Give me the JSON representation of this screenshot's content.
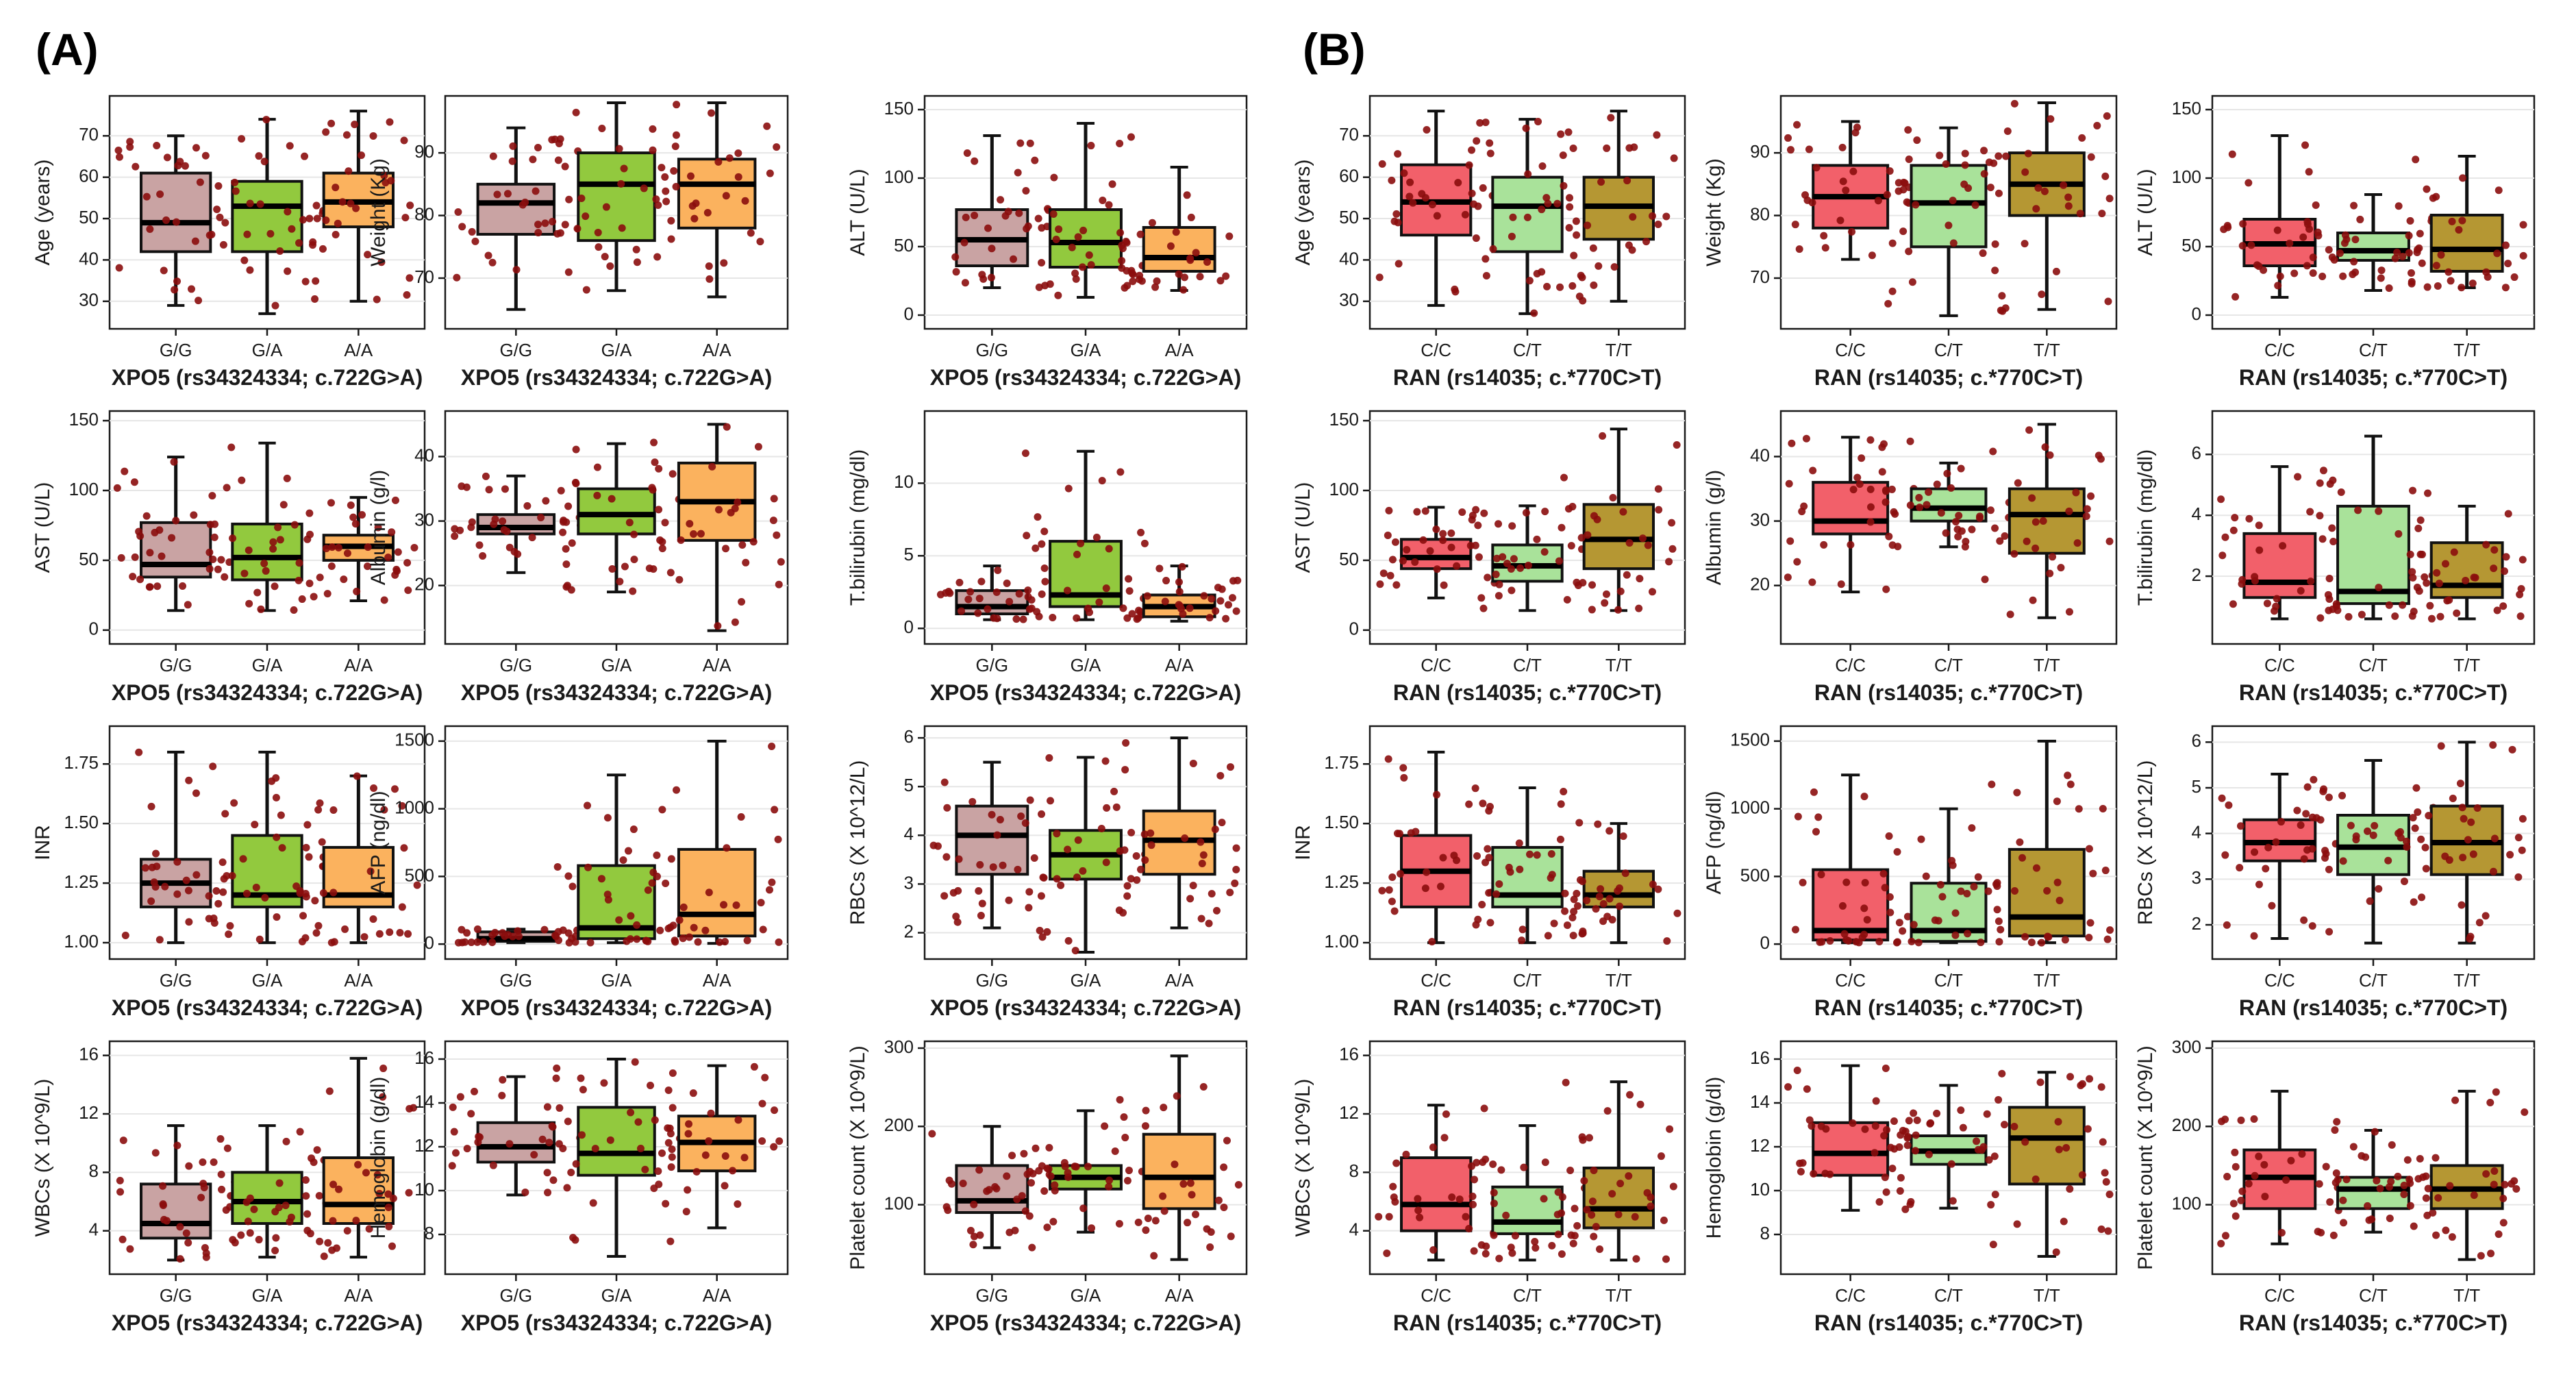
{
  "panel_labels": [
    "(A)",
    "(B)"
  ],
  "colors": {
    "border": "#1a1a1a",
    "grid": "#e6e6e6",
    "point": "#8b0d0d",
    "median": "#000000",
    "xpo5_box": [
      "#c9a3a3",
      "#92c93e",
      "#fbb25e"
    ],
    "ran_box": [
      "#f2606a",
      "#a9e29a",
      "#b59733"
    ]
  },
  "xaxis": {
    "xpo5": {
      "title": "XPO5 (rs34324334; c.722G>A)",
      "categories": [
        "G/G",
        "G/A",
        "A/A"
      ]
    },
    "ran": {
      "title": "RAN (rs14035; c.*770C>T)",
      "categories": [
        "C/C",
        "C/T",
        "T/T"
      ]
    }
  },
  "chart_data": [
    {
      "type": "box",
      "panel": "A",
      "gene": "xpo5",
      "ylabel": "Age (years)",
      "ylim": [
        25,
        78
      ],
      "yticks": [
        30,
        40,
        50,
        60,
        70
      ],
      "ticklabels": [
        "30",
        "40",
        "50",
        "60",
        "70"
      ],
      "boxes": [
        {
          "min": 29,
          "q1": 42,
          "median": 49,
          "q3": 61,
          "max": 70
        },
        {
          "min": 27,
          "q1": 42,
          "median": 53,
          "q3": 59,
          "max": 74
        },
        {
          "min": 30,
          "q1": 48,
          "median": 54,
          "q3": 61,
          "max": 76
        }
      ]
    },
    {
      "type": "box",
      "panel": "A",
      "gene": "xpo5",
      "ylabel": "Weight (Kg)",
      "ylim": [
        63,
        98
      ],
      "yticks": [
        70,
        80,
        90
      ],
      "ticklabels": [
        "70",
        "80",
        "90"
      ],
      "boxes": [
        {
          "min": 65,
          "q1": 77,
          "median": 82,
          "q3": 85,
          "max": 94
        },
        {
          "min": 68,
          "q1": 76,
          "median": 85,
          "q3": 90,
          "max": 98
        },
        {
          "min": 67,
          "q1": 78,
          "median": 85,
          "q3": 89,
          "max": 98
        }
      ]
    },
    {
      "type": "box",
      "panel": "A",
      "gene": "xpo5",
      "ylabel": "ALT (U/L)",
      "ylim": [
        -5,
        155
      ],
      "yticks": [
        0,
        50,
        100,
        150
      ],
      "ticklabels": [
        "0",
        "50",
        "100",
        "150"
      ],
      "boxes": [
        {
          "min": 20,
          "q1": 36,
          "median": 55,
          "q3": 77,
          "max": 131
        },
        {
          "min": 13,
          "q1": 35,
          "median": 53,
          "q3": 77,
          "max": 140
        },
        {
          "min": 18,
          "q1": 32,
          "median": 42,
          "q3": 64,
          "max": 108
        }
      ]
    },
    {
      "type": "box",
      "panel": "B",
      "gene": "ran",
      "ylabel": "Age (years)",
      "ylim": [
        25,
        78
      ],
      "yticks": [
        30,
        40,
        50,
        60,
        70
      ],
      "ticklabels": [
        "30",
        "40",
        "50",
        "60",
        "70"
      ],
      "boxes": [
        {
          "min": 29,
          "q1": 46,
          "median": 54,
          "q3": 63,
          "max": 76
        },
        {
          "min": 27,
          "q1": 42,
          "median": 53,
          "q3": 60,
          "max": 74
        },
        {
          "min": 30,
          "q1": 45,
          "median": 53,
          "q3": 60,
          "max": 76
        }
      ]
    },
    {
      "type": "box",
      "panel": "B",
      "gene": "ran",
      "ylabel": "Weight (Kg)",
      "ylim": [
        63,
        98
      ],
      "yticks": [
        70,
        80,
        90
      ],
      "ticklabels": [
        "70",
        "80",
        "90"
      ],
      "boxes": [
        {
          "min": 73,
          "q1": 78,
          "median": 83,
          "q3": 88,
          "max": 95
        },
        {
          "min": 64,
          "q1": 75,
          "median": 82,
          "q3": 88,
          "max": 94
        },
        {
          "min": 65,
          "q1": 80,
          "median": 85,
          "q3": 90,
          "max": 98
        }
      ]
    },
    {
      "type": "box",
      "panel": "B",
      "gene": "ran",
      "ylabel": "ALT (U/L)",
      "ylim": [
        -5,
        155
      ],
      "yticks": [
        0,
        50,
        100,
        150
      ],
      "ticklabels": [
        "0",
        "50",
        "100",
        "150"
      ],
      "boxes": [
        {
          "min": 13,
          "q1": 36,
          "median": 52,
          "q3": 70,
          "max": 131
        },
        {
          "min": 18,
          "q1": 40,
          "median": 47,
          "q3": 60,
          "max": 88
        },
        {
          "min": 20,
          "q1": 32,
          "median": 48,
          "q3": 73,
          "max": 116
        }
      ]
    },
    {
      "type": "box",
      "panel": "A",
      "gene": "xpo5",
      "ylabel": "AST (U/L)",
      "ylim": [
        -5,
        152
      ],
      "yticks": [
        0,
        50,
        100,
        150
      ],
      "ticklabels": [
        "0",
        "50",
        "100",
        "150"
      ],
      "boxes": [
        {
          "min": 14,
          "q1": 38,
          "median": 47,
          "q3": 77,
          "max": 124
        },
        {
          "min": 14,
          "q1": 36,
          "median": 52,
          "q3": 76,
          "max": 134
        },
        {
          "min": 21,
          "q1": 50,
          "median": 60,
          "q3": 68,
          "max": 95
        }
      ]
    },
    {
      "type": "box",
      "panel": "A",
      "gene": "xpo5",
      "ylabel": "Albumin (g/l)",
      "ylim": [
        12,
        46
      ],
      "yticks": [
        20,
        30,
        40
      ],
      "ticklabels": [
        "20",
        "30",
        "40"
      ],
      "boxes": [
        {
          "min": 22,
          "q1": 28,
          "median": 29,
          "q3": 31,
          "max": 37
        },
        {
          "min": 19,
          "q1": 28,
          "median": 31,
          "q3": 35,
          "max": 42
        },
        {
          "min": 13,
          "q1": 27,
          "median": 33,
          "q3": 39,
          "max": 45
        }
      ]
    },
    {
      "type": "box",
      "panel": "A",
      "gene": "xpo5",
      "ylabel": "T.bilirubin (mg/dl)",
      "ylim": [
        -0.6,
        14.5
      ],
      "yticks": [
        0,
        5,
        10
      ],
      "ticklabels": [
        "0",
        "5",
        "10"
      ],
      "boxes": [
        {
          "min": 0.6,
          "q1": 1.0,
          "median": 1.5,
          "q3": 2.6,
          "max": 4.3
        },
        {
          "min": 0.6,
          "q1": 1.5,
          "median": 2.3,
          "q3": 6.0,
          "max": 12.2
        },
        {
          "min": 0.5,
          "q1": 0.8,
          "median": 1.5,
          "q3": 2.3,
          "max": 4.3
        }
      ]
    },
    {
      "type": "box",
      "panel": "B",
      "gene": "ran",
      "ylabel": "AST (U/L)",
      "ylim": [
        -5,
        152
      ],
      "yticks": [
        0,
        50,
        100,
        150
      ],
      "ticklabels": [
        "0",
        "50",
        "100",
        "150"
      ],
      "boxes": [
        {
          "min": 23,
          "q1": 44,
          "median": 52,
          "q3": 65,
          "max": 88
        },
        {
          "min": 14,
          "q1": 35,
          "median": 46,
          "q3": 61,
          "max": 89
        },
        {
          "min": 14,
          "q1": 44,
          "median": 65,
          "q3": 90,
          "max": 144
        }
      ]
    },
    {
      "type": "box",
      "panel": "B",
      "gene": "ran",
      "ylabel": "Albumin (g/l)",
      "ylim": [
        12,
        46
      ],
      "yticks": [
        20,
        30,
        40
      ],
      "ticklabels": [
        "20",
        "30",
        "40"
      ],
      "boxes": [
        {
          "min": 19,
          "q1": 28,
          "median": 30,
          "q3": 36,
          "max": 43
        },
        {
          "min": 26,
          "q1": 30,
          "median": 32,
          "q3": 35,
          "max": 39
        },
        {
          "min": 15,
          "q1": 25,
          "median": 31,
          "q3": 35,
          "max": 45
        }
      ]
    },
    {
      "type": "box",
      "panel": "B",
      "gene": "ran",
      "ylabel": "T.bilirubin (mg/dl)",
      "ylim": [
        0,
        7.2
      ],
      "yticks": [
        2,
        4,
        6
      ],
      "ticklabels": [
        "2",
        "4",
        "6"
      ],
      "boxes": [
        {
          "min": 0.6,
          "q1": 1.3,
          "median": 1.8,
          "q3": 3.4,
          "max": 5.6
        },
        {
          "min": 0.6,
          "q1": 1.1,
          "median": 1.5,
          "q3": 4.3,
          "max": 6.6
        },
        {
          "min": 0.6,
          "q1": 1.3,
          "median": 1.7,
          "q3": 3.1,
          "max": 4.3
        }
      ]
    },
    {
      "type": "box",
      "panel": "A",
      "gene": "xpo5",
      "ylabel": "INR",
      "ylim": [
        0.96,
        1.88
      ],
      "yticks": [
        1.0,
        1.25,
        1.5,
        1.75
      ],
      "ticklabels": [
        "1.00",
        "1.25",
        "1.50",
        "1.75"
      ],
      "boxes": [
        {
          "min": 1.0,
          "q1": 1.15,
          "median": 1.25,
          "q3": 1.35,
          "max": 1.8
        },
        {
          "min": 1.0,
          "q1": 1.15,
          "median": 1.2,
          "q3": 1.45,
          "max": 1.8
        },
        {
          "min": 1.0,
          "q1": 1.15,
          "median": 1.2,
          "q3": 1.4,
          "max": 1.7
        }
      ]
    },
    {
      "type": "box",
      "panel": "A",
      "gene": "xpo5",
      "ylabel": "AFP (ng/dl)",
      "ylim": [
        -60,
        1560
      ],
      "yticks": [
        0,
        500,
        1000,
        1500
      ],
      "ticklabels": [
        "0",
        "500",
        "1000",
        "1500"
      ],
      "boxes": [
        {
          "min": 10,
          "q1": 20,
          "median": 40,
          "q3": 90,
          "max": 110
        },
        {
          "min": 10,
          "q1": 40,
          "median": 120,
          "q3": 580,
          "max": 1250
        },
        {
          "min": 5,
          "q1": 60,
          "median": 220,
          "q3": 700,
          "max": 1500
        }
      ]
    },
    {
      "type": "box",
      "panel": "A",
      "gene": "xpo5",
      "ylabel": "RBCs (X 10^12/L)",
      "ylim": [
        1.6,
        6.1
      ],
      "yticks": [
        2,
        3,
        4,
        5,
        6
      ],
      "ticklabels": [
        "2",
        "3",
        "4",
        "5",
        "6"
      ],
      "boxes": [
        {
          "min": 2.1,
          "q1": 3.2,
          "median": 4.0,
          "q3": 4.6,
          "max": 5.5
        },
        {
          "min": 1.6,
          "q1": 3.1,
          "median": 3.6,
          "q3": 4.1,
          "max": 5.6
        },
        {
          "min": 2.1,
          "q1": 3.2,
          "median": 3.9,
          "q3": 4.5,
          "max": 6.0
        }
      ]
    },
    {
      "type": "box",
      "panel": "B",
      "gene": "ran",
      "ylabel": "INR",
      "ylim": [
        0.96,
        1.88
      ],
      "yticks": [
        1.0,
        1.25,
        1.5,
        1.75
      ],
      "ticklabels": [
        "1.00",
        "1.25",
        "1.50",
        "1.75"
      ],
      "boxes": [
        {
          "min": 1.0,
          "q1": 1.15,
          "median": 1.3,
          "q3": 1.45,
          "max": 1.8
        },
        {
          "min": 1.0,
          "q1": 1.15,
          "median": 1.2,
          "q3": 1.4,
          "max": 1.65
        },
        {
          "min": 1.0,
          "q1": 1.15,
          "median": 1.2,
          "q3": 1.3,
          "max": 1.5
        }
      ]
    },
    {
      "type": "box",
      "panel": "B",
      "gene": "ran",
      "ylabel": "AFP (ng/dl)",
      "ylim": [
        -60,
        1560
      ],
      "yticks": [
        0,
        500,
        1000,
        1500
      ],
      "ticklabels": [
        "0",
        "500",
        "1000",
        "1500"
      ],
      "boxes": [
        {
          "min": 10,
          "q1": 30,
          "median": 100,
          "q3": 550,
          "max": 1250
        },
        {
          "min": 10,
          "q1": 20,
          "median": 100,
          "q3": 450,
          "max": 1000
        },
        {
          "min": 10,
          "q1": 60,
          "median": 200,
          "q3": 700,
          "max": 1500
        }
      ]
    },
    {
      "type": "box",
      "panel": "B",
      "gene": "ran",
      "ylabel": "RBCs (X 10^12/L)",
      "ylim": [
        1.4,
        6.2
      ],
      "yticks": [
        2,
        3,
        4,
        5,
        6
      ],
      "ticklabels": [
        "2",
        "3",
        "4",
        "5",
        "6"
      ],
      "boxes": [
        {
          "min": 1.7,
          "q1": 3.4,
          "median": 3.8,
          "q3": 4.3,
          "max": 5.3
        },
        {
          "min": 1.6,
          "q1": 3.1,
          "median": 3.7,
          "q3": 4.4,
          "max": 5.6
        },
        {
          "min": 1.6,
          "q1": 3.1,
          "median": 3.8,
          "q3": 4.6,
          "max": 6.0
        }
      ]
    },
    {
      "type": "box",
      "panel": "A",
      "gene": "xpo5",
      "ylabel": "WBCs (X 10^9/L)",
      "ylim": [
        1.5,
        16.5
      ],
      "yticks": [
        4,
        8,
        12,
        16
      ],
      "ticklabels": [
        "4",
        "8",
        "12",
        "16"
      ],
      "boxes": [
        {
          "min": 2,
          "q1": 3.5,
          "median": 4.5,
          "q3": 7.2,
          "max": 11.2
        },
        {
          "min": 2.2,
          "q1": 4.5,
          "median": 6,
          "q3": 8,
          "max": 11.2
        },
        {
          "min": 2.2,
          "q1": 4.5,
          "median": 5.8,
          "q3": 9,
          "max": 15.8
        }
      ]
    },
    {
      "type": "box",
      "panel": "A",
      "gene": "xpo5",
      "ylabel": "Hemoglobin (g/dl)",
      "ylim": [
        6.5,
        16.5
      ],
      "yticks": [
        8,
        10,
        12,
        14,
        16
      ],
      "ticklabels": [
        "8",
        "10",
        "12",
        "14",
        "16"
      ],
      "boxes": [
        {
          "min": 9.8,
          "q1": 11.3,
          "median": 12,
          "q3": 13.1,
          "max": 15.2
        },
        {
          "min": 7,
          "q1": 10.7,
          "median": 11.7,
          "q3": 13.8,
          "max": 16
        },
        {
          "min": 8.3,
          "q1": 10.9,
          "median": 12.2,
          "q3": 13.4,
          "max": 15.7
        }
      ]
    },
    {
      "type": "box",
      "panel": "A",
      "gene": "xpo5",
      "ylabel": "Platelet count (X 10^9/L)",
      "ylim": [
        20,
        300
      ],
      "yticks": [
        100,
        200,
        300
      ],
      "ticklabels": [
        "100",
        "200",
        "300"
      ],
      "boxes": [
        {
          "min": 45,
          "q1": 90,
          "median": 105,
          "q3": 150,
          "max": 200
        },
        {
          "min": 65,
          "q1": 120,
          "median": 135,
          "q3": 150,
          "max": 220
        },
        {
          "min": 30,
          "q1": 95,
          "median": 135,
          "q3": 190,
          "max": 290
        }
      ]
    },
    {
      "type": "box",
      "panel": "B",
      "gene": "ran",
      "ylabel": "WBCs (X 10^9/L)",
      "ylim": [
        1.5,
        16.5
      ],
      "yticks": [
        4,
        8,
        12,
        16
      ],
      "ticklabels": [
        "4",
        "8",
        "12",
        "16"
      ],
      "boxes": [
        {
          "min": 2,
          "q1": 4,
          "median": 5.8,
          "q3": 9,
          "max": 12.6
        },
        {
          "min": 2,
          "q1": 3.8,
          "median": 4.6,
          "q3": 7,
          "max": 11.2
        },
        {
          "min": 2,
          "q1": 4.2,
          "median": 5.5,
          "q3": 8.3,
          "max": 14.2
        }
      ]
    },
    {
      "type": "box",
      "panel": "B",
      "gene": "ran",
      "ylabel": "Hemoglobin (g/dl)",
      "ylim": [
        6.5,
        16.5
      ],
      "yticks": [
        8,
        10,
        12,
        14,
        16
      ],
      "ticklabels": [
        "8",
        "10",
        "12",
        "14",
        "16"
      ],
      "boxes": [
        {
          "min": 9.1,
          "q1": 10.7,
          "median": 11.7,
          "q3": 13.1,
          "max": 15.7
        },
        {
          "min": 9.2,
          "q1": 11.2,
          "median": 11.8,
          "q3": 12.5,
          "max": 14.8
        },
        {
          "min": 7,
          "q1": 10.3,
          "median": 12.4,
          "q3": 13.8,
          "max": 15.4
        }
      ]
    },
    {
      "type": "box",
      "panel": "B",
      "gene": "ran",
      "ylabel": "Platelet count (X 10^9/L)",
      "ylim": [
        20,
        300
      ],
      "yticks": [
        100,
        200,
        300
      ],
      "ticklabels": [
        "100",
        "200",
        "300"
      ],
      "boxes": [
        {
          "min": 50,
          "q1": 95,
          "median": 135,
          "q3": 170,
          "max": 245
        },
        {
          "min": 65,
          "q1": 95,
          "median": 120,
          "q3": 135,
          "max": 195
        },
        {
          "min": 30,
          "q1": 95,
          "median": 120,
          "q3": 150,
          "max": 245
        }
      ]
    }
  ]
}
